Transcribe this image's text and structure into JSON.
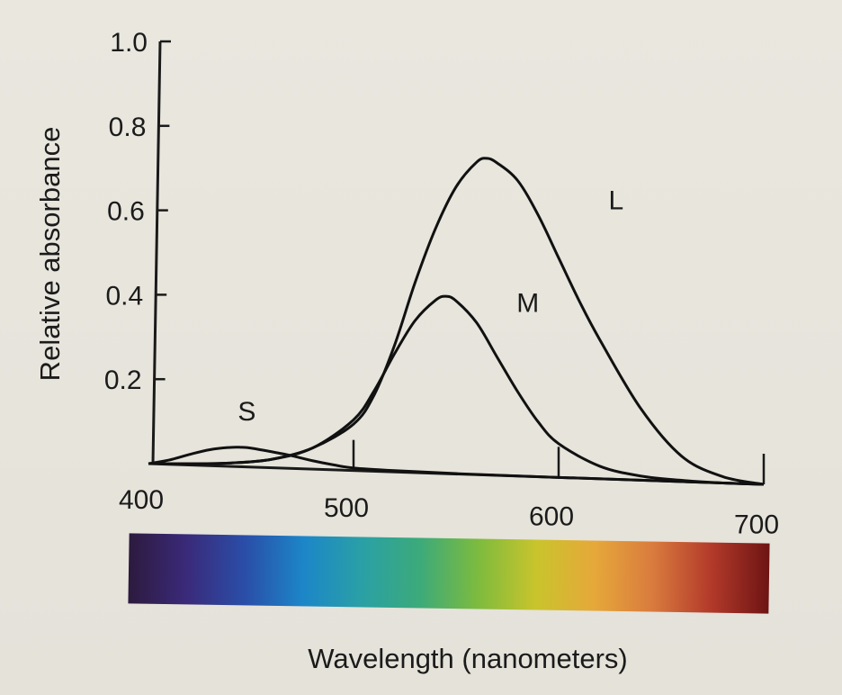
{
  "chart_data": {
    "type": "line",
    "xlabel": "Wavelength (nanometers)",
    "ylabel": "Relative absorbance",
    "xlim": [
      400,
      700
    ],
    "ylim": [
      0,
      1.0
    ],
    "x_ticks": [
      {
        "value": 400,
        "label": "400"
      },
      {
        "value": 500,
        "label": "500"
      },
      {
        "value": 600,
        "label": "600"
      },
      {
        "value": 700,
        "label": "700"
      }
    ],
    "y_ticks": [
      {
        "value": 0.2,
        "label": "0.2"
      },
      {
        "value": 0.4,
        "label": "0.4"
      },
      {
        "value": 0.6,
        "label": "0.6"
      },
      {
        "value": 0.8,
        "label": "0.8"
      },
      {
        "value": 1.0,
        "label": "1.0"
      }
    ],
    "series": [
      {
        "name": "S",
        "x": [
          400,
          410,
          420,
          430,
          440,
          445,
          450,
          460,
          470,
          480,
          490,
          500,
          520,
          550,
          600,
          700
        ],
        "y": [
          0.0,
          0.01,
          0.025,
          0.038,
          0.045,
          0.046,
          0.045,
          0.038,
          0.03,
          0.02,
          0.012,
          0.006,
          0.003,
          0.001,
          0.0,
          0.0
        ]
      },
      {
        "name": "M",
        "x": [
          400,
          420,
          440,
          460,
          480,
          500,
          510,
          520,
          530,
          540,
          545,
          550,
          560,
          570,
          580,
          590,
          600,
          620,
          640,
          660,
          680,
          700
        ],
        "y": [
          0.0,
          0.003,
          0.008,
          0.02,
          0.05,
          0.12,
          0.19,
          0.28,
          0.36,
          0.41,
          0.42,
          0.41,
          0.36,
          0.28,
          0.2,
          0.13,
          0.08,
          0.03,
          0.01,
          0.003,
          0.0,
          0.0
        ]
      },
      {
        "name": "L",
        "x": [
          400,
          420,
          440,
          460,
          480,
          500,
          510,
          520,
          530,
          540,
          550,
          560,
          565,
          570,
          580,
          590,
          600,
          610,
          620,
          640,
          660,
          680,
          700
        ],
        "y": [
          0.0,
          0.003,
          0.008,
          0.02,
          0.05,
          0.11,
          0.18,
          0.3,
          0.45,
          0.58,
          0.68,
          0.74,
          0.75,
          0.74,
          0.7,
          0.62,
          0.52,
          0.42,
          0.33,
          0.17,
          0.06,
          0.015,
          0.0
        ]
      }
    ],
    "spectrum_bar": {
      "colors": [
        "#2d1a3e",
        "#3a2a7a",
        "#2a4ea8",
        "#1c86c8",
        "#2aa0a6",
        "#3caa7a",
        "#7dbb3e",
        "#c9c42c",
        "#e6a83a",
        "#d97b3e",
        "#b33a2a",
        "#6e1414"
      ]
    }
  }
}
